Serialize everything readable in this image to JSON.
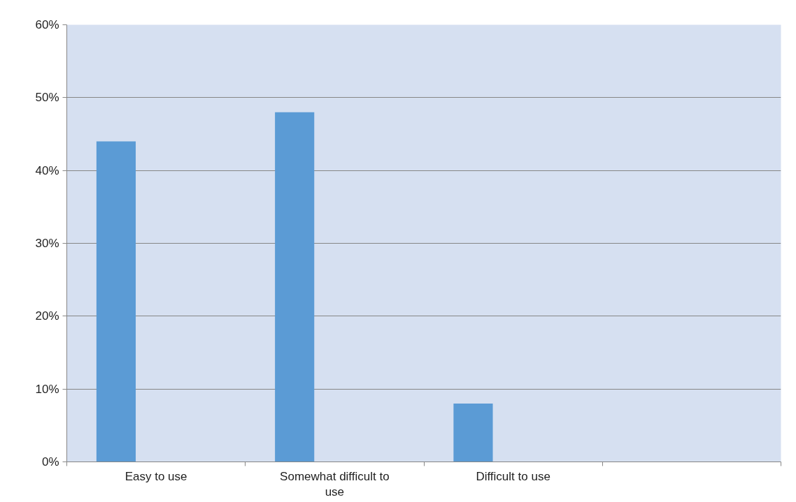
{
  "chart_data": {
    "type": "bar",
    "categories": [
      "Easy to use",
      "Somewhat difficult to use",
      "Difficult to use",
      null
    ],
    "values": [
      44,
      48,
      8,
      null
    ],
    "color": "#5b9bd5",
    "ylim": [
      0,
      60
    ],
    "yticks": [
      {
        "value": 0,
        "label": "0%"
      },
      {
        "value": 10,
        "label": "10%"
      },
      {
        "value": 20,
        "label": "20%"
      },
      {
        "value": 30,
        "label": "30%"
      },
      {
        "value": 40,
        "label": "40%"
      },
      {
        "value": 50,
        "label": "50%"
      },
      {
        "value": 60,
        "label": "60%"
      }
    ],
    "grid": "y"
  }
}
